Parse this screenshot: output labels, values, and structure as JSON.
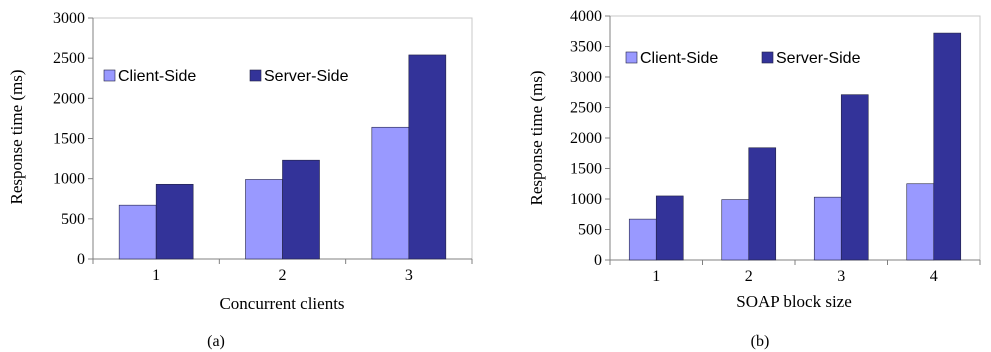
{
  "chart_data": [
    {
      "type": "bar",
      "caption": "(a)",
      "xlabel": "Concurrent clients",
      "ylabel": "Response time (ms)",
      "categories": [
        "1",
        "2",
        "3"
      ],
      "ylim": [
        0,
        3000
      ],
      "yticks": [
        0,
        500,
        1000,
        1500,
        2000,
        2500,
        3000
      ],
      "series": [
        {
          "name": "Client-Side",
          "color": "#9999ff",
          "values": [
            670,
            990,
            1640
          ]
        },
        {
          "name": "Server-Side",
          "color": "#333399",
          "values": [
            930,
            1230,
            2540
          ]
        }
      ],
      "legend": "top-left inside plot",
      "grid": false
    },
    {
      "type": "bar",
      "caption": "(b)",
      "xlabel": "SOAP block size",
      "ylabel": "Response time (ms)",
      "categories": [
        "1",
        "2",
        "3",
        "4"
      ],
      "ylim": [
        0,
        4000
      ],
      "yticks": [
        0,
        500,
        1000,
        1500,
        2000,
        2500,
        3000,
        3500,
        4000
      ],
      "series": [
        {
          "name": "Client-Side",
          "color": "#9999ff",
          "values": [
            670,
            990,
            1030,
            1250
          ]
        },
        {
          "name": "Server-Side",
          "color": "#333399",
          "values": [
            1050,
            1840,
            2710,
            3720
          ]
        }
      ],
      "legend": "top-left inside plot",
      "grid": false
    }
  ]
}
